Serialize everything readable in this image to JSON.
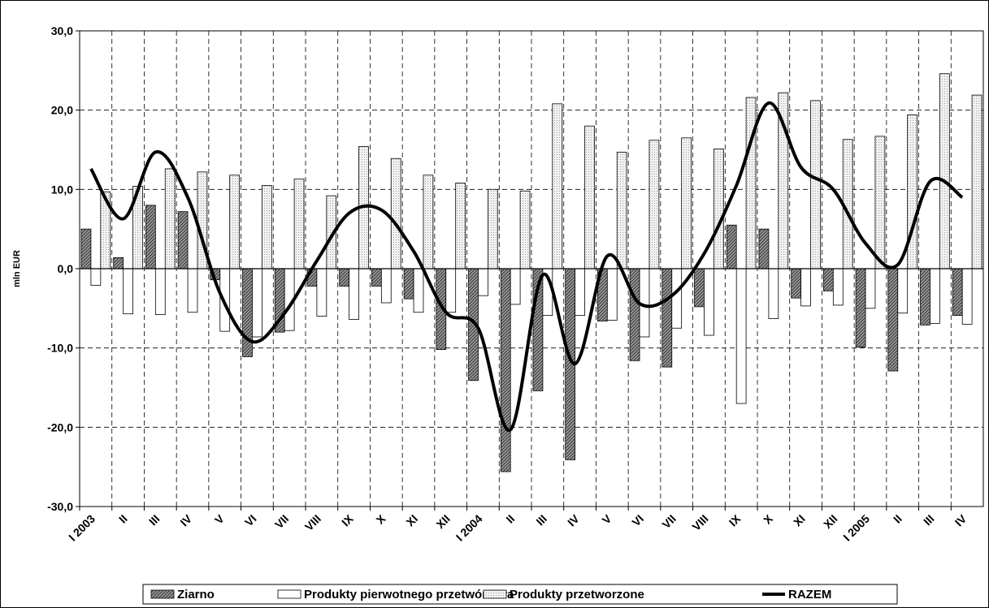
{
  "chart_data": {
    "type": "bar",
    "title": "",
    "ylabel": "mln EUR",
    "xlabel": "",
    "ylim": [
      -30,
      30
    ],
    "yticks": [
      30,
      20,
      10,
      0,
      -10,
      -20,
      -30
    ],
    "ytick_labels": [
      "30,0",
      "20,0",
      "10,0",
      "0,0",
      "-10,0",
      "-20,0",
      "-30,0"
    ],
    "grid": true,
    "legend_position": "bottom",
    "categories": [
      "I 2003",
      "II",
      "III",
      "IV",
      "V",
      "VI",
      "VII",
      "VIII",
      "IX",
      "X",
      "XI",
      "XII",
      "I 2004",
      "II",
      "III",
      "IV",
      "V",
      "VI",
      "VII",
      "VIII",
      "IX",
      "X",
      "XI",
      "XII",
      "I 2005",
      "II",
      "III",
      "IV"
    ],
    "series": [
      {
        "name": "Ziarno",
        "kind": "bar",
        "pattern": "dark-hatch",
        "values": [
          5.0,
          1.4,
          8.0,
          7.2,
          -1.4,
          -11.1,
          -8.0,
          -2.2,
          -2.2,
          -2.2,
          -3.8,
          -10.2,
          -14.1,
          -25.6,
          -15.4,
          -24.1,
          -6.6,
          -11.6,
          -12.4,
          -4.8,
          5.5,
          5.0,
          -3.7,
          -2.8,
          -9.9,
          -12.9,
          -7.1,
          -5.9
        ]
      },
      {
        "name": "Produkty pierwotnego przetwórstwa",
        "kind": "bar",
        "pattern": "white",
        "values": [
          -2.1,
          -5.7,
          -5.8,
          -5.5,
          -7.9,
          -8.6,
          -7.8,
          -6.0,
          -6.4,
          -4.3,
          -5.5,
          -5.5,
          -3.4,
          -4.5,
          -5.9,
          -5.9,
          -6.5,
          -8.6,
          -7.5,
          -8.4,
          -17.0,
          -6.3,
          -4.7,
          -4.6,
          -5.0,
          -5.6,
          -6.9,
          -7.0
        ]
      },
      {
        "name": "Produkty przetworzone",
        "kind": "bar",
        "pattern": "light-dots",
        "values": [
          9.7,
          10.4,
          12.6,
          12.2,
          11.8,
          10.5,
          11.3,
          9.2,
          15.4,
          13.9,
          11.8,
          10.8,
          10.0,
          9.8,
          20.8,
          18.0,
          14.7,
          16.2,
          16.5,
          15.1,
          21.6,
          22.2,
          21.2,
          16.3,
          16.7,
          19.4,
          24.6,
          21.9
        ]
      },
      {
        "name": "RAZEM",
        "kind": "line",
        "values": [
          12.6,
          6.3,
          14.7,
          9.0,
          -3.1,
          -9.2,
          -5.6,
          1.0,
          7.0,
          7.4,
          2.2,
          -5.5,
          -7.5,
          -20.3,
          -0.8,
          -12.0,
          1.6,
          -4.4,
          -3.4,
          1.9,
          10.5,
          20.9,
          12.8,
          10.0,
          3.2,
          0.5,
          11.0,
          9.0
        ]
      }
    ]
  },
  "legend": {
    "items": [
      {
        "label": "Ziarno",
        "pattern": "dark-hatch"
      },
      {
        "label": "Produkty pierwotnego przetwórstwa",
        "pattern": "white"
      },
      {
        "label": "Produkty przetworzone",
        "pattern": "light-dots"
      },
      {
        "label": "RAZEM",
        "pattern": "line"
      }
    ]
  },
  "colors": {
    "line": "#000000",
    "dark_bar": "#8c8c8c",
    "light_bar": "#eeeeee",
    "white_bar": "#ffffff",
    "grid": "#000000"
  }
}
